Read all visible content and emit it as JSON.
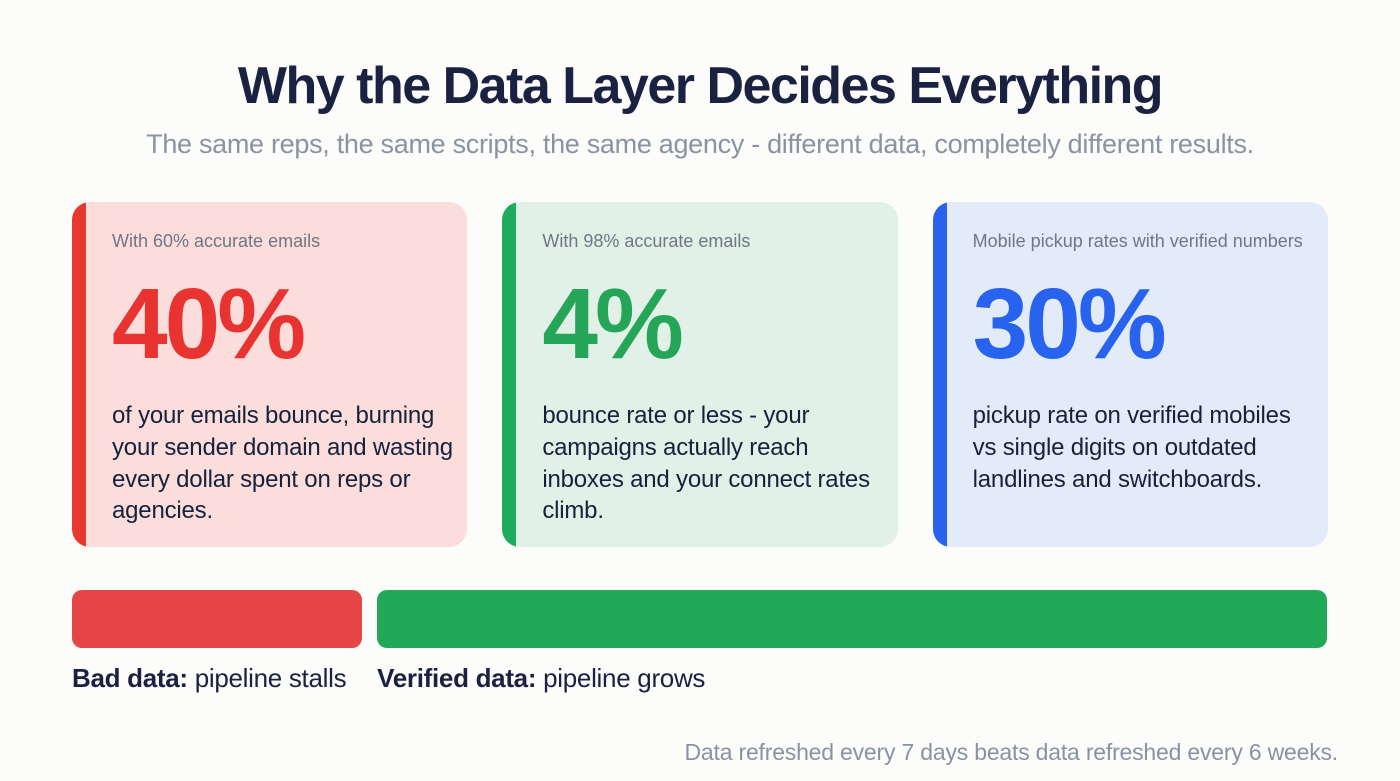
{
  "header": {
    "title": "Why the Data Layer Decides Everything",
    "subtitle": "The same reps, the same scripts, the same agency - different data, completely different results."
  },
  "cards": [
    {
      "label": "With 60% accurate emails",
      "value": "40%",
      "description": "of your emails bounce, burning your sender domain and wasting every dollar spent on reps or agencies.",
      "accent_color": "#e8392f",
      "value_color": "#e93330",
      "bg_color": "#fbdddc"
    },
    {
      "label": "With 98% accurate emails",
      "value": "4%",
      "description": "bounce rate or less - your campaigns actually reach inboxes and your connect rates climb.",
      "accent_color": "#1dab5c",
      "value_color": "#25a558",
      "bg_color": "#e2f1e7"
    },
    {
      "label": "Mobile pickup rates with verified numbers",
      "value": "30%",
      "description": "pickup rate on verified mobiles vs single digits on outdated landlines and switchboards.",
      "accent_color": "#2a62ee",
      "value_color": "#2763ef",
      "bg_color": "#e4ebf8"
    }
  ],
  "comparison": {
    "bars": [
      {
        "id": "bad-data",
        "color": "#e54545",
        "width": "23.1%",
        "label_bold": "Bad data:",
        "label_rest": " pipeline stalls"
      },
      {
        "id": "verified-data",
        "color": "#21a957",
        "width": "75.6%",
        "label_bold": "Verified data:",
        "label_rest": " pipeline grows"
      }
    ]
  },
  "footer": {
    "note": "Data refreshed every 7 days beats data refreshed every 6 weeks."
  },
  "chart_data": {
    "type": "bar",
    "title": "Why the Data Layer Decides Everything",
    "subtitle": "The same reps, the same scripts, the same agency - different data, completely different results.",
    "stat_cards": [
      {
        "context": "With 60% accurate emails",
        "value": 40,
        "unit": "%",
        "text": "of your emails bounce, burning your sender domain and wasting every dollar spent on reps or agencies.",
        "color": "#e93330"
      },
      {
        "context": "With 98% accurate emails",
        "value": 4,
        "unit": "%",
        "text": "bounce rate or less - your campaigns actually reach inboxes and your connect rates climb.",
        "color": "#25a558"
      },
      {
        "context": "Mobile pickup rates with verified numbers",
        "value": 30,
        "unit": "%",
        "text": "pickup rate on verified mobiles vs single digits on outdated landlines and switchboards.",
        "color": "#2763ef"
      }
    ],
    "categories": [
      "Bad data: pipeline stalls",
      "Verified data: pipeline grows"
    ],
    "values": [
      23,
      76
    ],
    "values_note": "relative horizontal bar lengths as % of row width",
    "legend_position": "below-bars",
    "grid": false,
    "annotation": "Data refreshed every 7 days beats data refreshed every 6 weeks."
  }
}
